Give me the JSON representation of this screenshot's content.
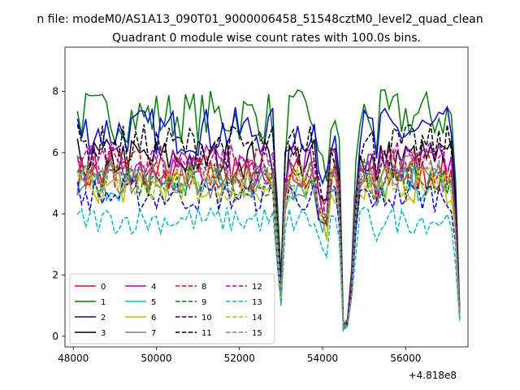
{
  "window": {
    "suptitle": "n file: modeM0/AS1A13_090T01_9000006458_51548cztM0_level2_quad_clean"
  },
  "chart_data": {
    "type": "line",
    "title": "Quadrant 0 module wise count rates with 100.0s bins.",
    "xlabel": "",
    "ylabel": "",
    "x_offset_label": "+4.818e8",
    "xlim": [
      47800,
      57500
    ],
    "ylim": [
      -0.35,
      9.45
    ],
    "x_ticks": [
      48000,
      50000,
      52000,
      54000,
      56000
    ],
    "y_ticks": [
      0,
      2,
      4,
      6,
      8
    ],
    "grid": false,
    "legend_placement": "lower-left",
    "legend_columns": 4,
    "x_range": [
      48100,
      57300
    ],
    "x_step": 100,
    "series": [
      {
        "name": "0",
        "color": "#ff0000",
        "style": "solid",
        "base": 5.3
      },
      {
        "name": "1",
        "color": "#008000",
        "style": "solid",
        "base": 7.2
      },
      {
        "name": "2",
        "color": "#0000ff",
        "style": "solid",
        "base": 6.7
      },
      {
        "name": "3",
        "color": "#000000",
        "style": "solid",
        "base": 5.8
      },
      {
        "name": "4",
        "color": "#bf00bf",
        "style": "solid",
        "base": 5.6
      },
      {
        "name": "5",
        "color": "#00bfbf",
        "style": "solid",
        "base": 5.0
      },
      {
        "name": "6",
        "color": "#bfbf00",
        "style": "solid",
        "base": 4.9
      },
      {
        "name": "7",
        "color": "#808080",
        "style": "solid",
        "base": 5.1
      },
      {
        "name": "8",
        "color": "#ff0000",
        "style": "dashed",
        "base": 5.5
      },
      {
        "name": "9",
        "color": "#008000",
        "style": "dashed",
        "base": 5.2
      },
      {
        "name": "10",
        "color": "#0000ff",
        "style": "dashed",
        "base": 4.6
      },
      {
        "name": "11",
        "color": "#000000",
        "style": "dashed",
        "base": 6.2
      },
      {
        "name": "12",
        "color": "#bf00bf",
        "style": "dashed",
        "base": 5.7
      },
      {
        "name": "13",
        "color": "#00bfbf",
        "style": "dashed",
        "base": 3.8
      },
      {
        "name": "14",
        "color": "#bfbf00",
        "style": "dashed",
        "base": 5.0
      },
      {
        "name": "15",
        "color": "#808080",
        "style": "dashed",
        "base": 5.3
      }
    ],
    "profile": {
      "note_x_values_data_units": true,
      "dips": [
        [
          52900,
          0.62
        ],
        [
          53000,
          0.25
        ],
        [
          53100,
          0.9
        ],
        [
          53900,
          0.8
        ],
        [
          54000,
          0.75
        ],
        [
          54100,
          0.72
        ],
        [
          54400,
          0.82
        ],
        [
          54500,
          0.05
        ],
        [
          54600,
          0.08
        ],
        [
          54700,
          0.3
        ],
        [
          54800,
          0.75
        ],
        [
          55300,
          0.88
        ],
        [
          57200,
          0.7
        ],
        [
          57300,
          0.12
        ]
      ]
    }
  }
}
